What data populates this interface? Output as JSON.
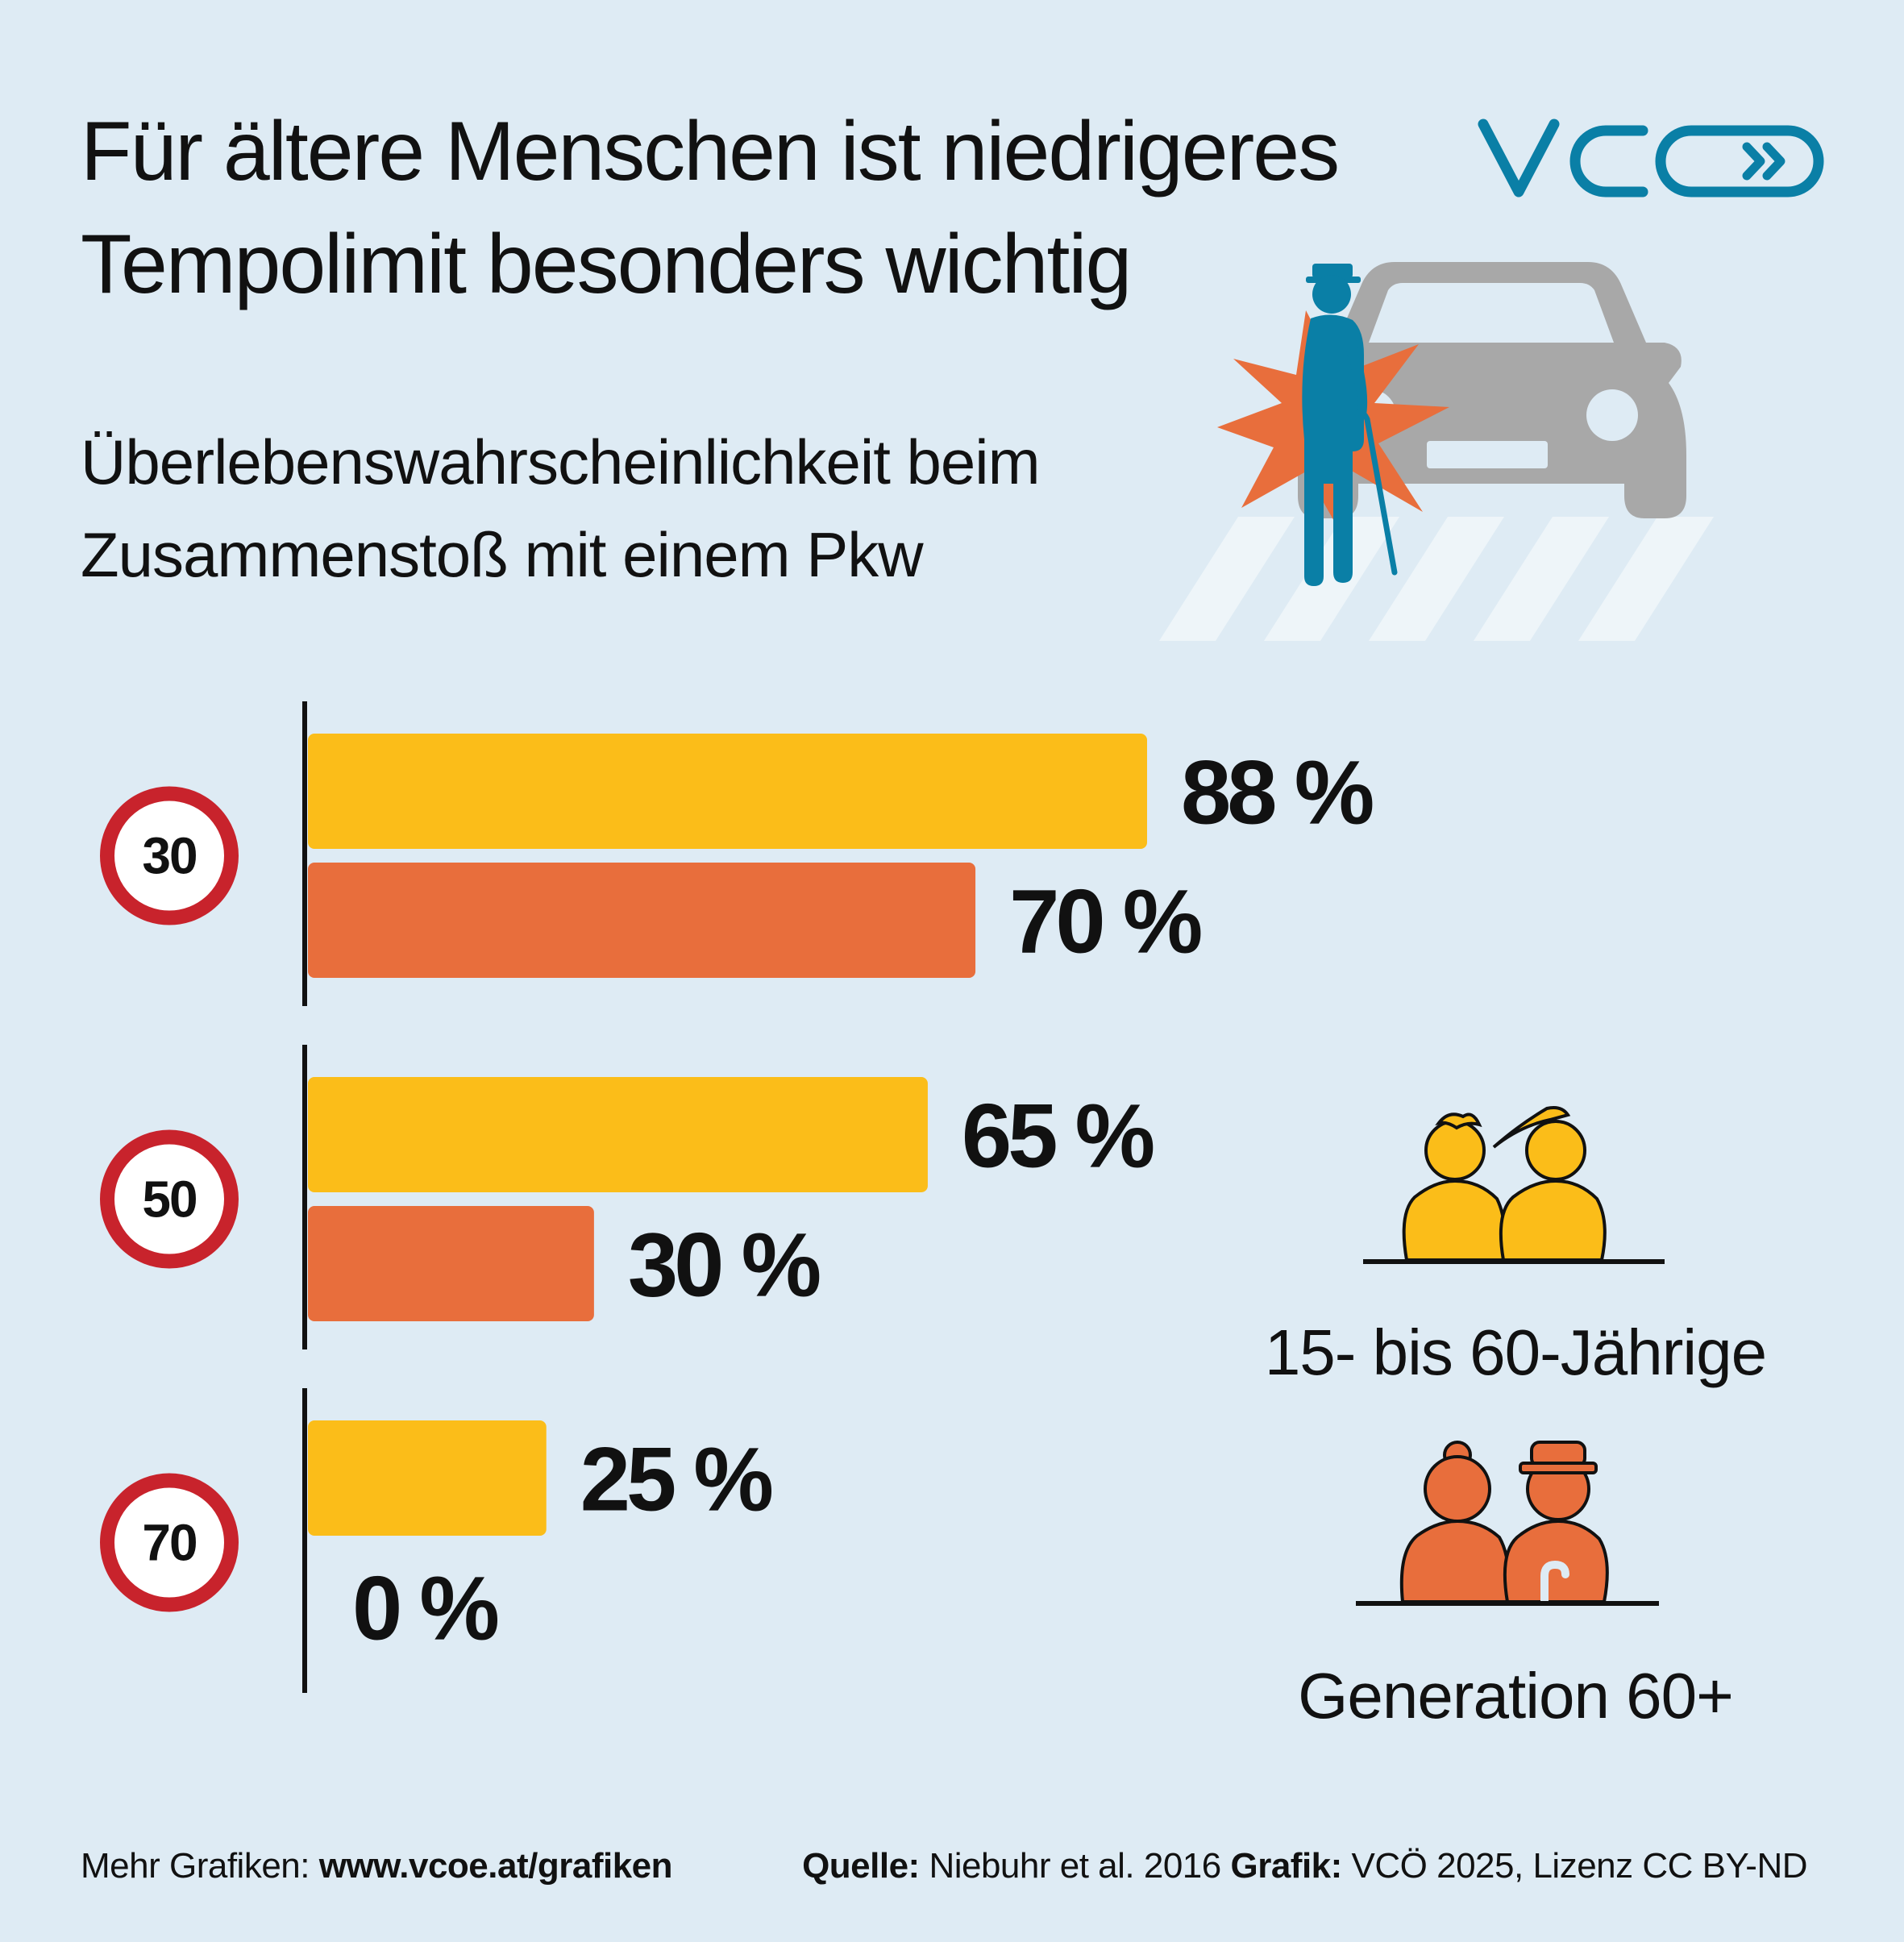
{
  "header": {
    "title_line1": "Für ältere Menschen ist niedrigeres",
    "title_line2": "Tempolimit besonders wichtig",
    "subtitle_line1": "Überlebenswahrscheinlichkeit beim",
    "subtitle_line2": "Zusammenstoß mit einem Pkw",
    "logo_text": "VCÖ"
  },
  "colors": {
    "background": "#deebf4",
    "younger": "#fbbd19",
    "older": "#e86e3c",
    "sign_red": "#c8232c",
    "logo_blue": "#0a7fa6",
    "car_gray": "#a8a8a8"
  },
  "chart_data": {
    "type": "bar",
    "orientation": "horizontal",
    "categories": [
      "30",
      "50",
      "70"
    ],
    "series": [
      {
        "name": "15- bis 60-Jährige",
        "values": [
          88,
          65,
          25
        ],
        "labels": [
          "88 %",
          "65 %",
          "25 %"
        ]
      },
      {
        "name": "Generation 60+",
        "values": [
          70,
          30,
          0
        ],
        "labels": [
          "70 %",
          "30 %",
          "0 %"
        ]
      }
    ],
    "xlim": [
      0,
      100
    ],
    "unit": "%",
    "grid": false,
    "legend_position": "right"
  },
  "legend": {
    "younger_label": "15- bis 60-Jährige",
    "older_label": "Generation 60+"
  },
  "footer": {
    "more_prefix": "Mehr Grafiken: ",
    "more_link": "www.vcoe.at/grafiken",
    "source_label": "Quelle:",
    "source_text": " Niebuhr et al. 2016 ",
    "graphic_label": "Grafik:",
    "graphic_text": " VCÖ 2025, Lizenz CC BY-ND"
  }
}
